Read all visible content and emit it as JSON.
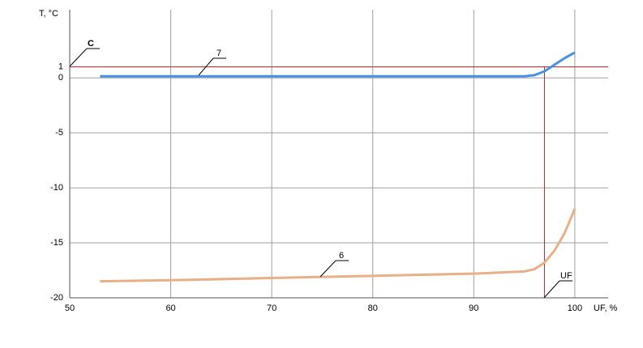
{
  "chart_data": {
    "type": "line",
    "y_label": "T, °C",
    "x_label": "UF, %",
    "xlim": [
      50,
      103.3
    ],
    "ylim": [
      -20,
      6.2
    ],
    "xticks": [
      50,
      60,
      70,
      80,
      90,
      100
    ],
    "yticks": [
      -20,
      -15,
      -10,
      -5,
      0,
      1
    ],
    "grid": true,
    "reference_lines": [
      {
        "axis": "y",
        "value": 1,
        "label": "C",
        "color": "#b03030"
      },
      {
        "axis": "x",
        "value": 97,
        "label": "UF",
        "color": "#b03030"
      }
    ],
    "series": [
      {
        "name": "7",
        "color": "#4a90e2",
        "x": [
          53,
          60,
          70,
          80,
          90,
          95,
          96,
          97,
          98,
          99,
          100
        ],
        "values": [
          0.15,
          0.15,
          0.15,
          0.15,
          0.15,
          0.15,
          0.25,
          0.6,
          1.2,
          1.8,
          2.3
        ]
      },
      {
        "name": "6",
        "color": "#e8b088",
        "x": [
          53,
          60,
          70,
          80,
          90,
          95,
          96,
          97,
          98,
          99,
          100
        ],
        "values": [
          -18.5,
          -18.4,
          -18.2,
          -18.0,
          -17.8,
          -17.6,
          -17.4,
          -16.8,
          -15.7,
          -14.1,
          -11.9
        ]
      }
    ]
  }
}
